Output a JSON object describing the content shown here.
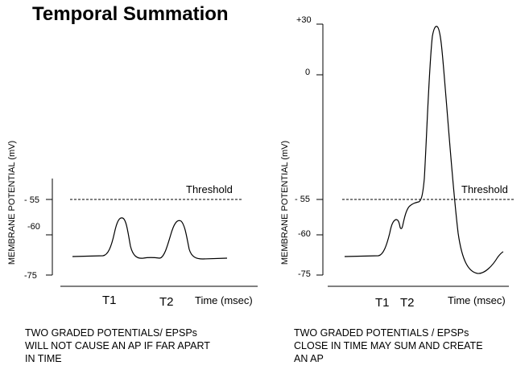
{
  "title": "Temporal Summation",
  "y_axis_label": "MEMBRANE POTENTIAL (mV)",
  "threshold_label": "Threshold",
  "time_label": "Time (msec)",
  "left_panel": {
    "ticks": [
      "- 55",
      "-60",
      "-75"
    ],
    "stimuli": [
      "T1",
      "T2"
    ],
    "caption": [
      "TWO GRADED POTENTIALS/ EPSPs",
      "WILL NOT CAUSE AN AP IF FAR APART",
      "IN TIME"
    ]
  },
  "right_panel": {
    "ticks": [
      "+30",
      "0",
      "- 55",
      "-60",
      "-75"
    ],
    "stimuli": [
      "T1",
      "T2"
    ],
    "caption": [
      "TWO GRADED POTENTIALS / EPSPs",
      "CLOSE IN TIME MAY SUM AND CREATE",
      "AN AP"
    ]
  }
}
